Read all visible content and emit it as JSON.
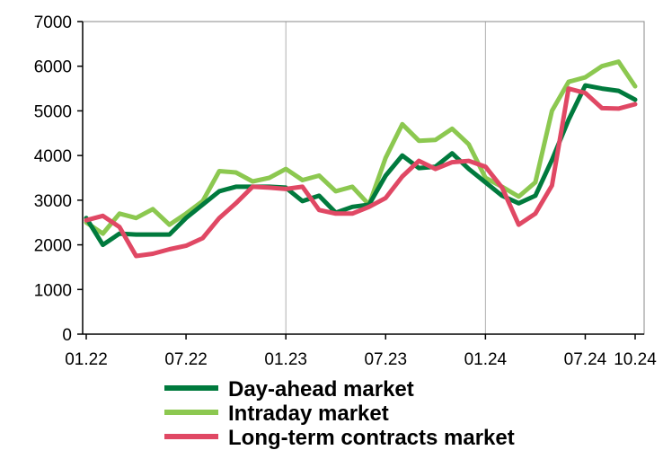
{
  "chart_data": {
    "type": "line",
    "title": "",
    "xlabel": "",
    "ylabel": "",
    "ylim": [
      0,
      7000
    ],
    "yticks": [
      0,
      1000,
      2000,
      3000,
      4000,
      5000,
      6000,
      7000
    ],
    "xtick_labels": [
      "01.22",
      "07.22",
      "01.23",
      "07.23",
      "01.24",
      "07.24",
      "10.24"
    ],
    "xtick_index": [
      0,
      6,
      12,
      18,
      24,
      30,
      33
    ],
    "grid": "vertical lines at half-year ticks",
    "legend_position": "bottom",
    "x": [
      "01.22",
      "02.22",
      "03.22",
      "04.22",
      "05.22",
      "06.22",
      "07.22",
      "08.22",
      "09.22",
      "10.22",
      "11.22",
      "12.22",
      "01.23",
      "02.23",
      "03.23",
      "04.23",
      "05.23",
      "06.23",
      "07.23",
      "08.23",
      "09.23",
      "10.23",
      "11.23",
      "12.23",
      "01.24",
      "02.24",
      "03.24",
      "04.24",
      "05.24",
      "06.24",
      "07.24",
      "08.24",
      "09.24",
      "10.24"
    ],
    "series": [
      {
        "name": "Day-ahead market",
        "color": "#007a3d",
        "values": [
          2600,
          2000,
          2250,
          2230,
          2230,
          2230,
          2600,
          2900,
          3200,
          3300,
          3300,
          3300,
          3280,
          2980,
          3100,
          2720,
          2850,
          2900,
          3550,
          4000,
          3720,
          3750,
          4050,
          3700,
          3400,
          3100,
          2930,
          3100,
          3900,
          4800,
          5570,
          5500,
          5450,
          5250
        ]
      },
      {
        "name": "Intraday market",
        "color": "#8cc850",
        "values": [
          2500,
          2250,
          2700,
          2600,
          2800,
          2450,
          2700,
          2980,
          3650,
          3620,
          3420,
          3500,
          3700,
          3450,
          3550,
          3200,
          3300,
          2900,
          3950,
          4700,
          4330,
          4350,
          4600,
          4250,
          3500,
          3300,
          3080,
          3400,
          5000,
          5650,
          5750,
          6000,
          6100,
          5550
        ]
      },
      {
        "name": "Long-term contracts market",
        "color": "#e04864",
        "values": [
          2550,
          2650,
          2400,
          1750,
          1800,
          1900,
          1980,
          2150,
          2600,
          2930,
          3300,
          3280,
          3250,
          3300,
          2780,
          2700,
          2700,
          2850,
          3050,
          3530,
          3880,
          3700,
          3850,
          3880,
          3750,
          3280,
          2450,
          2700,
          3330,
          5500,
          5400,
          5060,
          5050,
          5150
        ]
      }
    ]
  }
}
